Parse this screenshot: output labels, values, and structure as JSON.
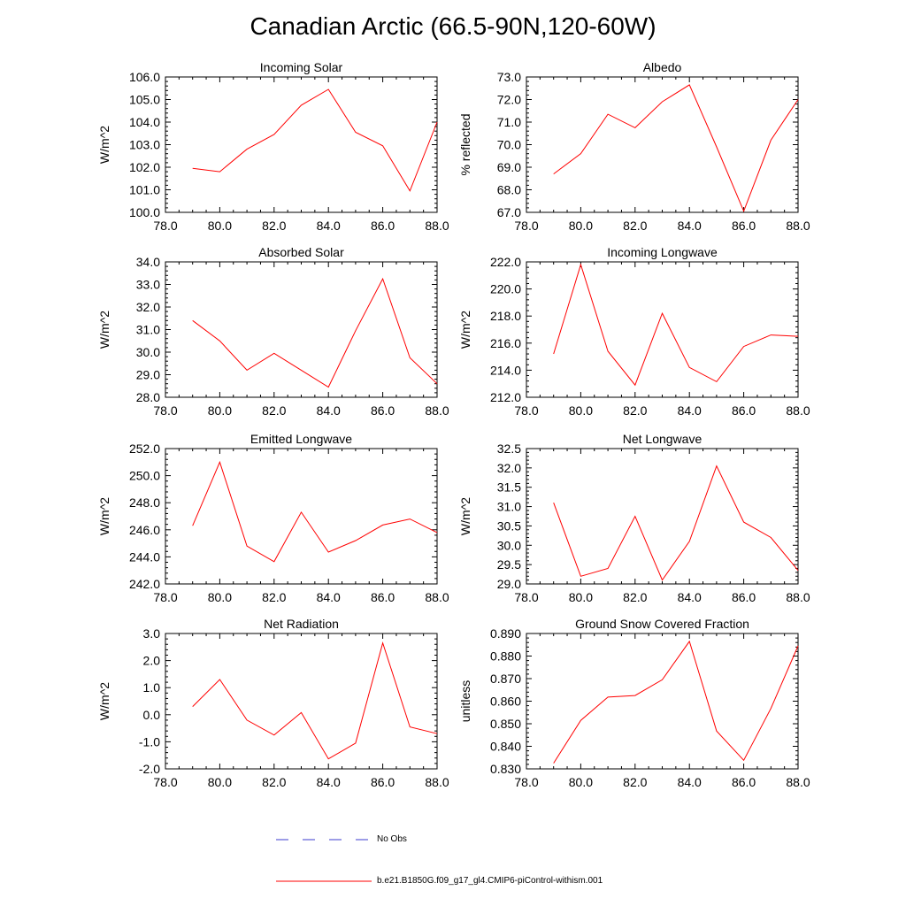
{
  "title": "Canadian Arctic (66.5-90N,120-60W)",
  "colors": {
    "model_line": "#ff0000",
    "obs_line": "#3b3bcf",
    "axis": "#000000"
  },
  "legend": {
    "obs_label": "No Obs",
    "model_label": "b.e21.B1850G.f09_g17_gl4.CMIP6-piControl-withism.001"
  },
  "chart_data": [
    {
      "type": "line",
      "title": "Incoming Solar",
      "ylabel": "W/m^2",
      "xlim": [
        78,
        88
      ],
      "ylim": [
        100,
        106
      ],
      "xticks": [
        "78.0",
        "80.0",
        "82.0",
        "84.0",
        "86.0",
        "88.0"
      ],
      "yticks": [
        "100.0",
        "101.0",
        "102.0",
        "103.0",
        "104.0",
        "105.0",
        "106.0"
      ],
      "series": [
        {
          "x": [
            79,
            80,
            81,
            82,
            83,
            84,
            85,
            86,
            87,
            88
          ],
          "values": [
            101.95,
            101.8,
            102.8,
            103.45,
            104.75,
            105.45,
            103.55,
            102.95,
            100.95,
            104.0
          ]
        }
      ]
    },
    {
      "type": "line",
      "title": "Albedo",
      "ylabel": "% reflected",
      "xlim": [
        78,
        88
      ],
      "ylim": [
        67,
        73
      ],
      "xticks": [
        "78.0",
        "80.0",
        "82.0",
        "84.0",
        "86.0",
        "88.0"
      ],
      "yticks": [
        "67.0",
        "68.0",
        "69.0",
        "70.0",
        "71.0",
        "72.0",
        "73.0"
      ],
      "series": [
        {
          "x": [
            79,
            80,
            81,
            82,
            83,
            84,
            85,
            86,
            87,
            88
          ],
          "values": [
            68.7,
            69.6,
            71.35,
            70.75,
            71.9,
            72.65,
            69.9,
            67.05,
            70.2,
            72.0
          ]
        }
      ]
    },
    {
      "type": "line",
      "title": "Absorbed Solar",
      "ylabel": "W/m^2",
      "xlim": [
        78,
        88
      ],
      "ylim": [
        28,
        34
      ],
      "xticks": [
        "78.0",
        "80.0",
        "82.0",
        "84.0",
        "86.0",
        "88.0"
      ],
      "yticks": [
        "28.0",
        "29.0",
        "30.0",
        "31.0",
        "32.0",
        "33.0",
        "34.0"
      ],
      "series": [
        {
          "x": [
            79,
            80,
            81,
            82,
            83,
            84,
            85,
            86,
            87,
            88
          ],
          "values": [
            31.4,
            30.5,
            29.2,
            29.95,
            29.2,
            28.45,
            30.95,
            33.25,
            29.75,
            28.6
          ]
        }
      ]
    },
    {
      "type": "line",
      "title": "Incoming Longwave",
      "ylabel": "W/m^2",
      "xlim": [
        78,
        88
      ],
      "ylim": [
        212,
        222
      ],
      "xticks": [
        "78.0",
        "80.0",
        "82.0",
        "84.0",
        "86.0",
        "88.0"
      ],
      "yticks": [
        "212.0",
        "214.0",
        "216.0",
        "218.0",
        "220.0",
        "222.0"
      ],
      "series": [
        {
          "x": [
            79,
            80,
            81,
            82,
            83,
            84,
            85,
            86,
            87,
            88
          ],
          "values": [
            215.2,
            221.8,
            215.4,
            212.9,
            218.2,
            214.2,
            213.15,
            215.75,
            216.6,
            216.5
          ]
        }
      ]
    },
    {
      "type": "line",
      "title": "Emitted Longwave",
      "ylabel": "W/m^2",
      "xlim": [
        78,
        88
      ],
      "ylim": [
        242,
        252
      ],
      "xticks": [
        "78.0",
        "80.0",
        "82.0",
        "84.0",
        "86.0",
        "88.0"
      ],
      "yticks": [
        "242.0",
        "244.0",
        "246.0",
        "248.0",
        "250.0",
        "252.0"
      ],
      "series": [
        {
          "x": [
            79,
            80,
            81,
            82,
            83,
            84,
            85,
            86,
            87,
            88
          ],
          "values": [
            246.3,
            251.0,
            244.8,
            243.65,
            247.3,
            244.35,
            245.2,
            246.35,
            246.8,
            245.8
          ]
        }
      ]
    },
    {
      "type": "line",
      "title": "Net Longwave",
      "ylabel": "W/m^2",
      "xlim": [
        78,
        88
      ],
      "ylim": [
        29,
        32.5
      ],
      "xticks": [
        "78.0",
        "80.0",
        "82.0",
        "84.0",
        "86.0",
        "88.0"
      ],
      "yticks": [
        "29.0",
        "29.5",
        "30.0",
        "30.5",
        "31.0",
        "31.5",
        "32.0",
        "32.5"
      ],
      "series": [
        {
          "x": [
            79,
            80,
            81,
            82,
            83,
            84,
            85,
            86,
            87,
            88
          ],
          "values": [
            31.1,
            29.2,
            29.4,
            30.75,
            29.1,
            30.1,
            32.05,
            30.6,
            30.2,
            29.35
          ]
        }
      ]
    },
    {
      "type": "line",
      "title": "Net Radiation",
      "ylabel": "W/m^2",
      "xlim": [
        78,
        88
      ],
      "ylim": [
        -2,
        3
      ],
      "xticks": [
        "78.0",
        "80.0",
        "82.0",
        "84.0",
        "86.0",
        "88.0"
      ],
      "yticks": [
        "-2.0",
        "-1.0",
        "0.0",
        "1.0",
        "2.0",
        "3.0"
      ],
      "series": [
        {
          "x": [
            79,
            80,
            81,
            82,
            83,
            84,
            85,
            86,
            87,
            88
          ],
          "values": [
            0.3,
            1.3,
            -0.2,
            -0.75,
            0.08,
            -1.63,
            -1.05,
            2.65,
            -0.45,
            -0.7
          ]
        }
      ]
    },
    {
      "type": "line",
      "title": "Ground Snow Covered Fraction",
      "ylabel": "unitless",
      "xlim": [
        78,
        88
      ],
      "ylim": [
        0.83,
        0.89
      ],
      "xticks": [
        "78.0",
        "80.0",
        "82.0",
        "84.0",
        "86.0",
        "88.0"
      ],
      "yticks": [
        "0.830",
        "0.840",
        "0.850",
        "0.860",
        "0.870",
        "0.880",
        "0.890"
      ],
      "series": [
        {
          "x": [
            79,
            80,
            81,
            82,
            83,
            84,
            85,
            86,
            87,
            88
          ],
          "values": [
            0.8325,
            0.8515,
            0.8618,
            0.8625,
            0.8695,
            0.8865,
            0.8468,
            0.8338,
            0.8568,
            0.8845
          ]
        }
      ]
    }
  ]
}
